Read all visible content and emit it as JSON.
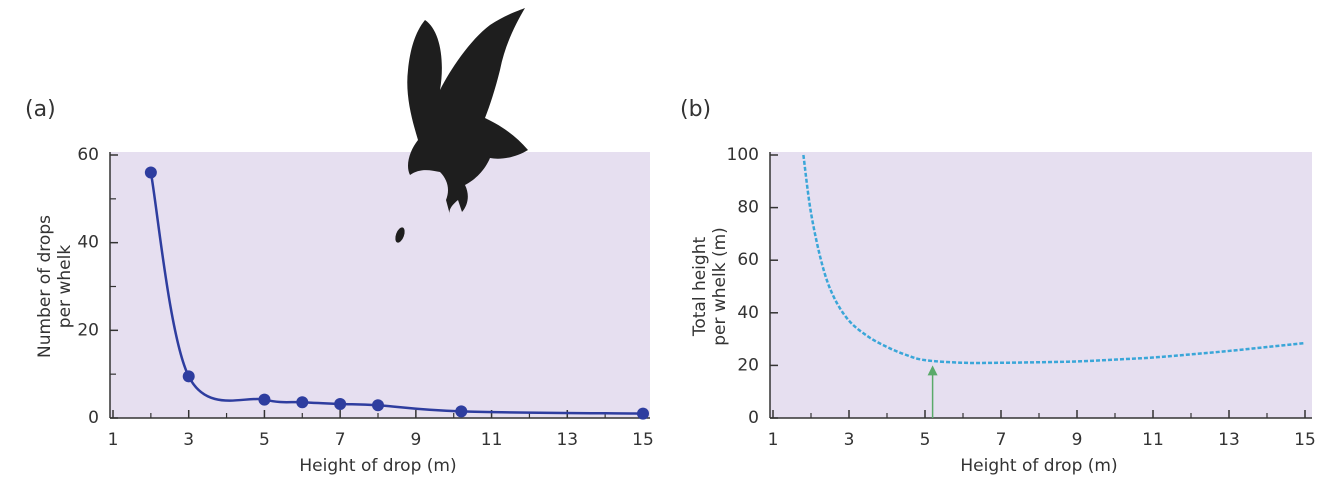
{
  "chart_data": [
    {
      "type": "line",
      "panel": "(a)",
      "xlabel": "Height of drop (m)",
      "ylabel": [
        "Number of drops",
        "per whelk"
      ],
      "x": [
        2,
        3,
        5,
        6,
        7,
        8,
        10.2,
        15
      ],
      "series": [
        {
          "name": "drops",
          "color": "#2e3d9f",
          "values": [
            56,
            9.5,
            4.2,
            3.6,
            3.2,
            2.9,
            1.5,
            1
          ],
          "markers": true,
          "dashed": false
        }
      ],
      "xlim": [
        1,
        15
      ],
      "xticks": [
        1,
        3,
        5,
        7,
        9,
        11,
        13,
        15
      ],
      "xminorticks": [
        2,
        4,
        6,
        8,
        10,
        12,
        14
      ],
      "ylim": [
        0,
        60
      ],
      "yticks": [
        0,
        20,
        40,
        60
      ],
      "yminorticks": [
        10,
        30,
        50
      ],
      "background": "#e6dff0"
    },
    {
      "type": "line",
      "panel": "(b)",
      "xlabel": "Height of drop (m)",
      "ylabel": [
        "Total height",
        "per whelk (m)"
      ],
      "x": [
        1.8,
        2,
        2.3,
        2.6,
        3,
        3.5,
        4,
        4.5,
        5,
        6,
        7,
        8,
        9,
        10,
        11,
        12,
        13,
        14,
        15
      ],
      "series": [
        {
          "name": "total",
          "color": "#3aa6d8",
          "values": [
            100,
            78,
            58,
            46,
            37,
            31,
            27,
            24,
            22,
            21,
            21,
            21.2,
            21.5,
            22.2,
            23,
            24.2,
            25.5,
            27,
            28.5
          ],
          "markers": false,
          "dashed": true
        }
      ],
      "xlim": [
        1,
        15
      ],
      "xticks": [
        1,
        3,
        5,
        7,
        9,
        11,
        13,
        15
      ],
      "xminorticks": [
        2,
        4,
        6,
        8,
        10,
        12,
        14
      ],
      "ylim": [
        0,
        100
      ],
      "yticks": [
        0,
        20,
        40,
        60,
        80,
        100
      ],
      "yminorticks": [],
      "arrow": {
        "x": 5.2,
        "y": 20,
        "color": "#5aaa6a"
      },
      "background": "#e6dff0"
    }
  ]
}
